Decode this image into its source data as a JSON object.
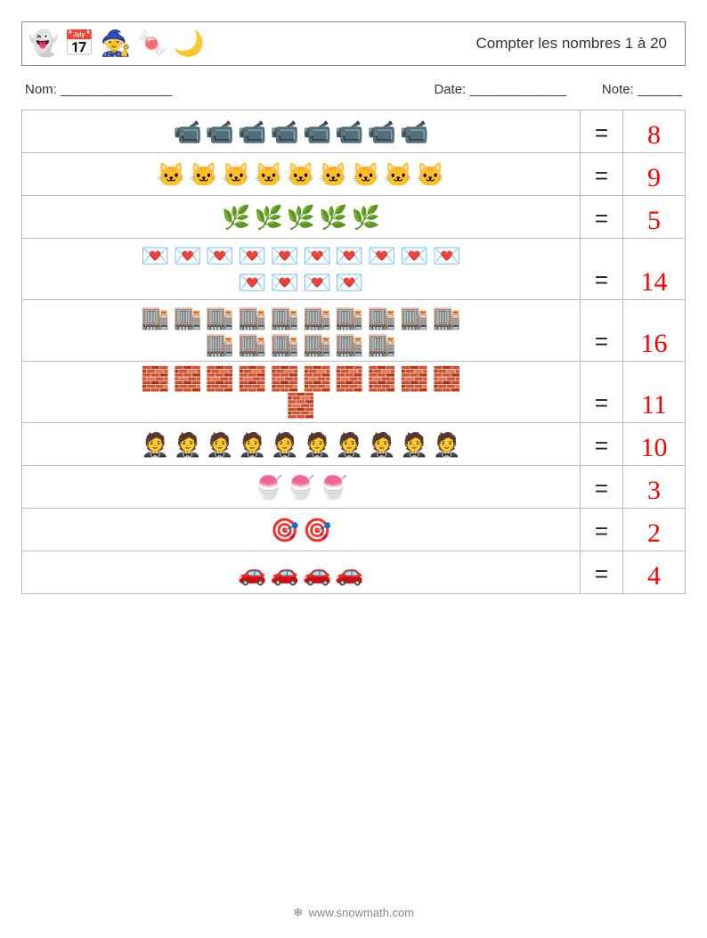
{
  "header": {
    "icons": [
      "👻",
      "📅",
      "🧙",
      "🍬",
      "🌙"
    ],
    "title": "Compter les nombres 1 à 20"
  },
  "meta": {
    "name_label": "Nom: _______________",
    "date_label": "Date: _____________",
    "note_label": "Note: ______"
  },
  "answer_color": "#ff0000",
  "equals_sign": "=",
  "rows": [
    {
      "icon": "📹",
      "count": 8,
      "per_line": 10,
      "answer": "8"
    },
    {
      "icon": "🐱",
      "count": 9,
      "per_line": 10,
      "answer": "9"
    },
    {
      "icon": "🌿",
      "count": 5,
      "per_line": 10,
      "answer": "5"
    },
    {
      "icon": "💌",
      "count": 14,
      "per_line": 10,
      "answer": "14"
    },
    {
      "icon": "🏬",
      "count": 16,
      "per_line": 10,
      "answer": "16"
    },
    {
      "icon": "🧱",
      "count": 11,
      "per_line": 10,
      "answer": "11"
    },
    {
      "icon": "🤵",
      "count": 10,
      "per_line": 10,
      "answer": "10"
    },
    {
      "icon": "🍧",
      "count": 3,
      "per_line": 10,
      "answer": "3"
    },
    {
      "icon": "🎯",
      "count": 2,
      "per_line": 10,
      "answer": "2"
    },
    {
      "icon": "🚗",
      "count": 4,
      "per_line": 10,
      "answer": "4"
    }
  ],
  "footer": {
    "icon": "❄",
    "text": "www.snowmath.com"
  }
}
